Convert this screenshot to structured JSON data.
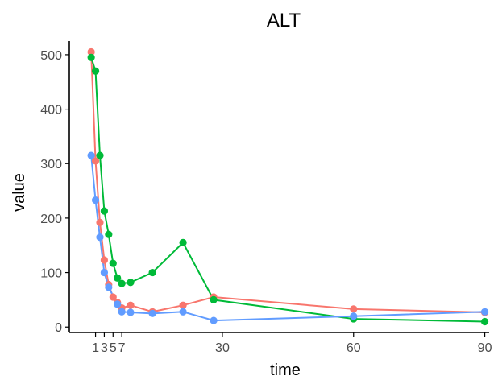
{
  "chart_data": {
    "type": "line",
    "title": "ALT",
    "xlabel": "time",
    "ylabel": "value",
    "xlim": [
      -5,
      91
    ],
    "ylim": [
      -10,
      525
    ],
    "xticks": [
      1,
      3,
      5,
      7,
      30,
      60,
      90
    ],
    "xtick_labels": [
      "1",
      "3",
      "5",
      "7",
      "30",
      "60",
      "90"
    ],
    "yticks": [
      0,
      100,
      200,
      300,
      400,
      500
    ],
    "ytick_labels": [
      "0",
      "100",
      "200",
      "300",
      "400",
      "500"
    ],
    "grid": false,
    "legend": "none",
    "series": [
      {
        "color": "#F8766D",
        "points": [
          [
            0,
            505
          ],
          [
            1,
            305
          ],
          [
            2,
            192
          ],
          [
            3,
            123
          ],
          [
            4,
            78
          ],
          [
            5,
            55
          ],
          [
            6,
            45
          ],
          [
            7,
            35
          ],
          [
            9,
            40
          ],
          [
            14,
            28
          ],
          [
            21,
            40
          ],
          [
            28,
            55
          ],
          [
            60,
            33
          ],
          [
            90,
            27
          ]
        ]
      },
      {
        "color": "#00BA38",
        "points": [
          [
            0,
            495
          ],
          [
            1,
            470
          ],
          [
            2,
            315
          ],
          [
            3,
            213
          ],
          [
            4,
            170
          ],
          [
            5,
            117
          ],
          [
            6,
            90
          ],
          [
            7,
            80
          ],
          [
            9,
            82
          ],
          [
            14,
            100
          ],
          [
            21,
            155
          ],
          [
            28,
            50
          ],
          [
            60,
            15
          ],
          [
            90,
            10
          ]
        ]
      },
      {
        "color": "#619CFF",
        "points": [
          [
            0,
            315
          ],
          [
            1,
            233
          ],
          [
            2,
            165
          ],
          [
            3,
            100
          ],
          [
            4,
            73
          ],
          [
            6,
            42
          ],
          [
            7,
            28
          ],
          [
            9,
            27
          ],
          [
            14,
            25
          ],
          [
            21,
            28
          ],
          [
            28,
            12
          ],
          [
            60,
            20
          ],
          [
            90,
            28
          ]
        ]
      }
    ]
  }
}
